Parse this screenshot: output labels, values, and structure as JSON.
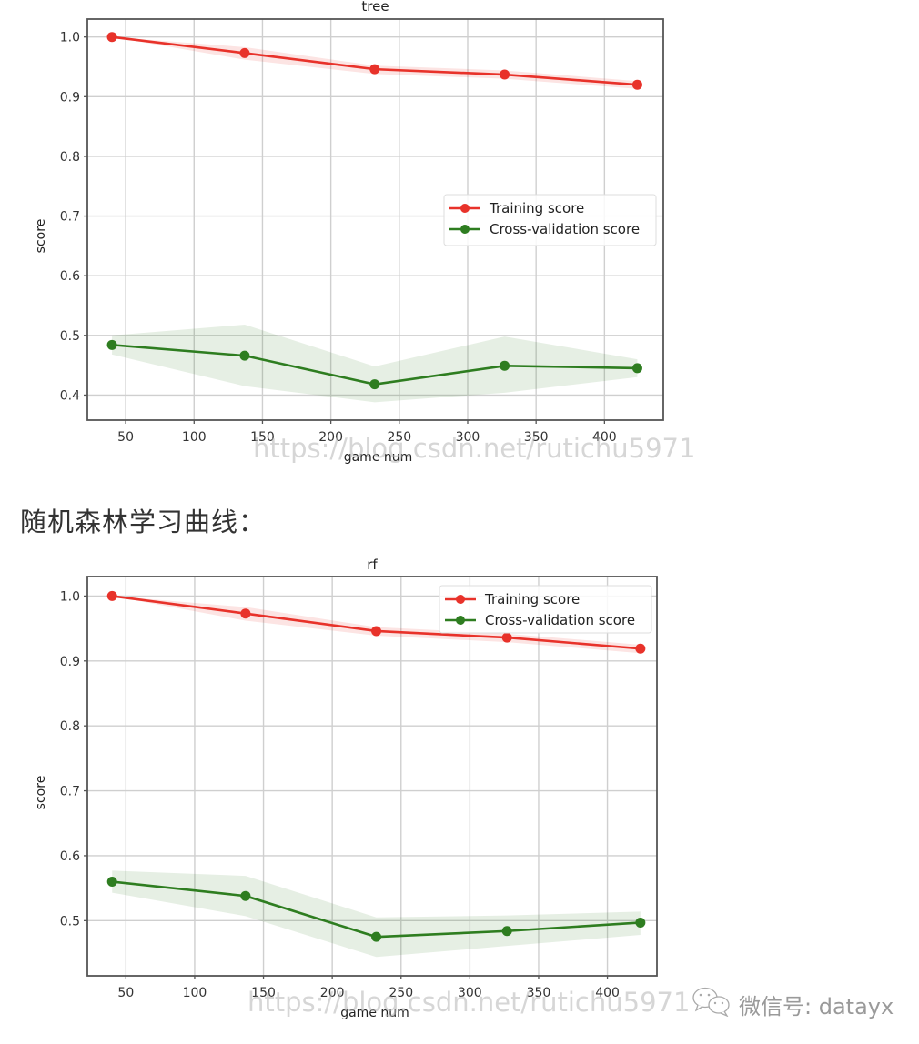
{
  "caption": "随机森林学习曲线：",
  "wechat_watermark": {
    "icon": "wechat-icon",
    "label": "微信号: datayx"
  },
  "chart_data": [
    {
      "type": "line",
      "title": "tree",
      "xlabel": "game num",
      "ylabel": "score",
      "x": [
        40,
        137,
        232,
        327,
        424
      ],
      "xticks": [
        50,
        100,
        150,
        200,
        250,
        300,
        350,
        400
      ],
      "yticks": [
        0.4,
        0.5,
        0.6,
        0.7,
        0.8,
        0.9,
        1.0
      ],
      "xlim": [
        22,
        443
      ],
      "ylim": [
        0.358,
        1.03
      ],
      "grid": true,
      "legend_position": "center right",
      "series": [
        {
          "name": "Training score",
          "color": "#e8322a",
          "values": [
            1.0,
            0.973,
            0.946,
            0.937,
            0.92
          ],
          "band_upper": [
            1.0,
            0.983,
            0.952,
            0.944,
            0.926
          ],
          "band_lower": [
            1.0,
            0.962,
            0.938,
            0.93,
            0.913
          ]
        },
        {
          "name": "Cross-validation score",
          "color": "#2e7d20",
          "values": [
            0.484,
            0.466,
            0.418,
            0.449,
            0.445
          ],
          "band_upper": [
            0.5,
            0.518,
            0.448,
            0.498,
            0.46
          ],
          "band_lower": [
            0.468,
            0.415,
            0.388,
            0.404,
            0.43
          ]
        }
      ],
      "watermark": "https://blog.csdn.net/rutichu5971"
    },
    {
      "type": "line",
      "title": "rf",
      "xlabel": "game num",
      "ylabel": "score",
      "x": [
        40,
        137,
        232,
        327,
        424
      ],
      "xticks": [
        50,
        100,
        150,
        200,
        250,
        300,
        350,
        400
      ],
      "yticks": [
        0.5,
        0.6,
        0.7,
        0.8,
        0.9,
        1.0
      ],
      "xlim": [
        22,
        436
      ],
      "ylim": [
        0.415,
        1.03
      ],
      "grid": true,
      "legend_position": "upper right",
      "series": [
        {
          "name": "Training score",
          "color": "#e8322a",
          "values": [
            1.0,
            0.973,
            0.946,
            0.936,
            0.919
          ],
          "band_upper": [
            1.0,
            0.983,
            0.952,
            0.942,
            0.925
          ],
          "band_lower": [
            1.0,
            0.962,
            0.939,
            0.929,
            0.912
          ]
        },
        {
          "name": "Cross-validation score",
          "color": "#2e7d20",
          "values": [
            0.56,
            0.538,
            0.475,
            0.484,
            0.497
          ],
          "band_upper": [
            0.577,
            0.569,
            0.505,
            0.508,
            0.514
          ],
          "band_lower": [
            0.543,
            0.507,
            0.444,
            0.461,
            0.478
          ]
        }
      ],
      "watermark": "https://blog.csdn.net/rutichu5971"
    }
  ]
}
